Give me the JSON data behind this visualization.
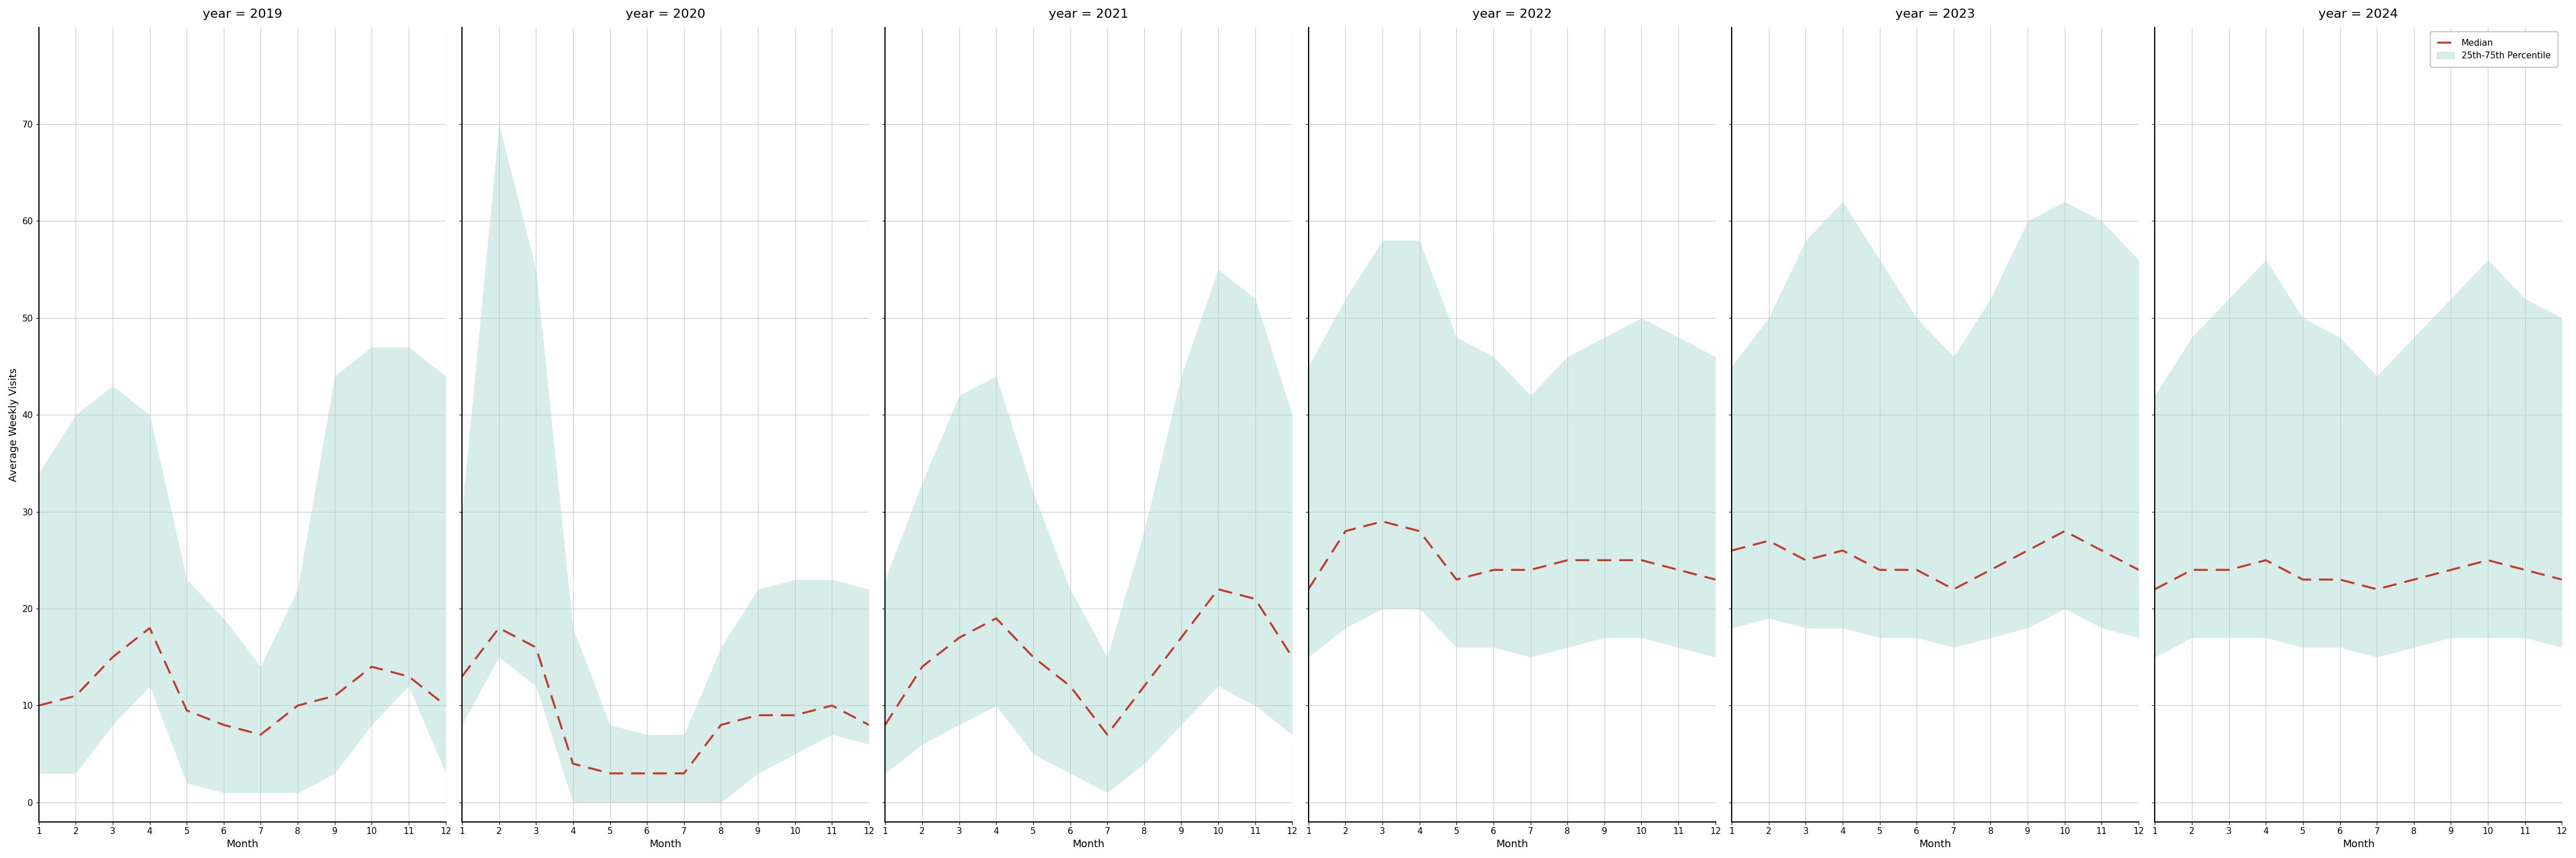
{
  "years": [
    2019,
    2020,
    2021,
    2022,
    2023,
    2024
  ],
  "months": [
    1,
    2,
    3,
    4,
    5,
    6,
    7,
    8,
    9,
    10,
    11,
    12
  ],
  "median": {
    "2019": [
      10,
      11,
      15,
      18,
      9.5,
      8,
      7,
      10,
      11,
      14,
      13,
      10
    ],
    "2020": [
      13,
      18,
      16,
      4,
      3,
      3,
      3,
      8,
      9,
      9,
      10,
      8
    ],
    "2021": [
      8,
      14,
      17,
      19,
      15,
      12,
      7,
      12,
      17,
      22,
      21,
      15
    ],
    "2022": [
      22,
      28,
      29,
      28,
      23,
      24,
      24,
      25,
      25,
      25,
      24,
      23
    ],
    "2023": [
      26,
      27,
      25,
      26,
      24,
      24,
      22,
      24,
      26,
      28,
      26,
      24
    ],
    "2024": [
      22,
      24,
      24,
      25,
      23,
      23,
      22,
      23,
      24,
      25,
      24,
      23
    ]
  },
  "p25": {
    "2019": [
      3,
      3,
      8,
      12,
      2,
      1,
      1,
      1,
      3,
      8,
      12,
      3
    ],
    "2020": [
      8,
      15,
      12,
      0,
      0,
      0,
      0,
      0,
      3,
      5,
      7,
      6
    ],
    "2021": [
      3,
      6,
      8,
      10,
      5,
      3,
      1,
      4,
      8,
      12,
      10,
      7
    ],
    "2022": [
      15,
      18,
      20,
      20,
      16,
      16,
      15,
      16,
      17,
      17,
      16,
      15
    ],
    "2023": [
      18,
      19,
      18,
      18,
      17,
      17,
      16,
      17,
      18,
      20,
      18,
      17
    ],
    "2024": [
      15,
      17,
      17,
      17,
      16,
      16,
      15,
      16,
      17,
      17,
      17,
      16
    ]
  },
  "p75": {
    "2019": [
      34,
      40,
      43,
      40,
      23,
      19,
      14,
      22,
      44,
      47,
      47,
      44
    ],
    "2020": [
      30,
      70,
      55,
      18,
      8,
      7,
      7,
      16,
      22,
      23,
      23,
      22
    ],
    "2021": [
      23,
      33,
      42,
      44,
      32,
      22,
      15,
      28,
      44,
      55,
      52,
      40
    ],
    "2022": [
      45,
      52,
      58,
      58,
      48,
      46,
      42,
      46,
      48,
      50,
      48,
      46
    ],
    "2023": [
      45,
      50,
      58,
      62,
      56,
      50,
      46,
      52,
      60,
      62,
      60,
      56
    ],
    "2024": [
      42,
      48,
      52,
      56,
      50,
      48,
      44,
      48,
      52,
      56,
      52,
      50
    ]
  },
  "ylim": [
    -2,
    80
  ],
  "yticks": [
    0,
    10,
    20,
    30,
    40,
    50,
    60,
    70
  ],
  "fill_color": "#a8d8d0",
  "fill_alpha": 0.45,
  "line_color": "#c0392b",
  "ylabel": "Average Weekly Visits",
  "xlabel": "Month",
  "title_prefix": "year = ",
  "title_fontsize": 16,
  "label_fontsize": 13,
  "tick_fontsize": 11,
  "background_color": "#ffffff",
  "grid_color": "#c8c8c8",
  "legend_median_label": "Median",
  "legend_band_label": "25th-75th Percentile"
}
